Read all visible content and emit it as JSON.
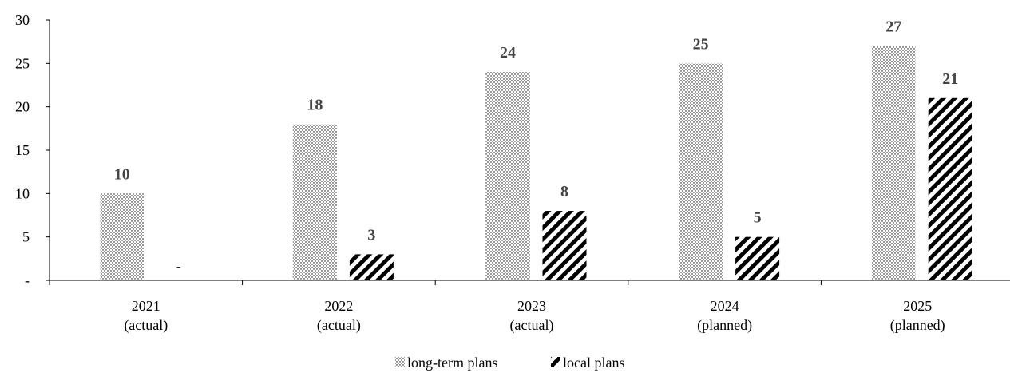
{
  "chart_data": {
    "type": "bar",
    "categories": [
      [
        "2021",
        "(actual)"
      ],
      [
        "2022",
        "(actual)"
      ],
      [
        "2023",
        "(actual)"
      ],
      [
        "2024",
        "(planned)"
      ],
      [
        "2025",
        "(planned)"
      ]
    ],
    "series": [
      {
        "name": "long-term plans",
        "values": [
          10,
          18,
          24,
          25,
          27
        ],
        "labels": [
          "10",
          "18",
          "24",
          "25",
          "27"
        ],
        "pattern": "dots"
      },
      {
        "name": "local plans",
        "values": [
          0,
          3,
          8,
          5,
          21
        ],
        "labels": [
          "-",
          "3",
          "8",
          "5",
          "21"
        ],
        "pattern": "diagonal-stripes"
      }
    ],
    "y_ticks": [
      {
        "value": 0,
        "label": "-"
      },
      {
        "value": 5,
        "label": "5"
      },
      {
        "value": 10,
        "label": "10"
      },
      {
        "value": 15,
        "label": "15"
      },
      {
        "value": 20,
        "label": "20"
      },
      {
        "value": 25,
        "label": "25"
      },
      {
        "value": 30,
        "label": "30"
      }
    ],
    "ylim": [
      0,
      30
    ],
    "title": "",
    "xlabel": "",
    "ylabel": "",
    "grid": false,
    "legend_position": "bottom-center",
    "colors": {
      "axis": "#000000",
      "text": "#000000",
      "label": "#444444",
      "pattern": "#000000"
    }
  }
}
